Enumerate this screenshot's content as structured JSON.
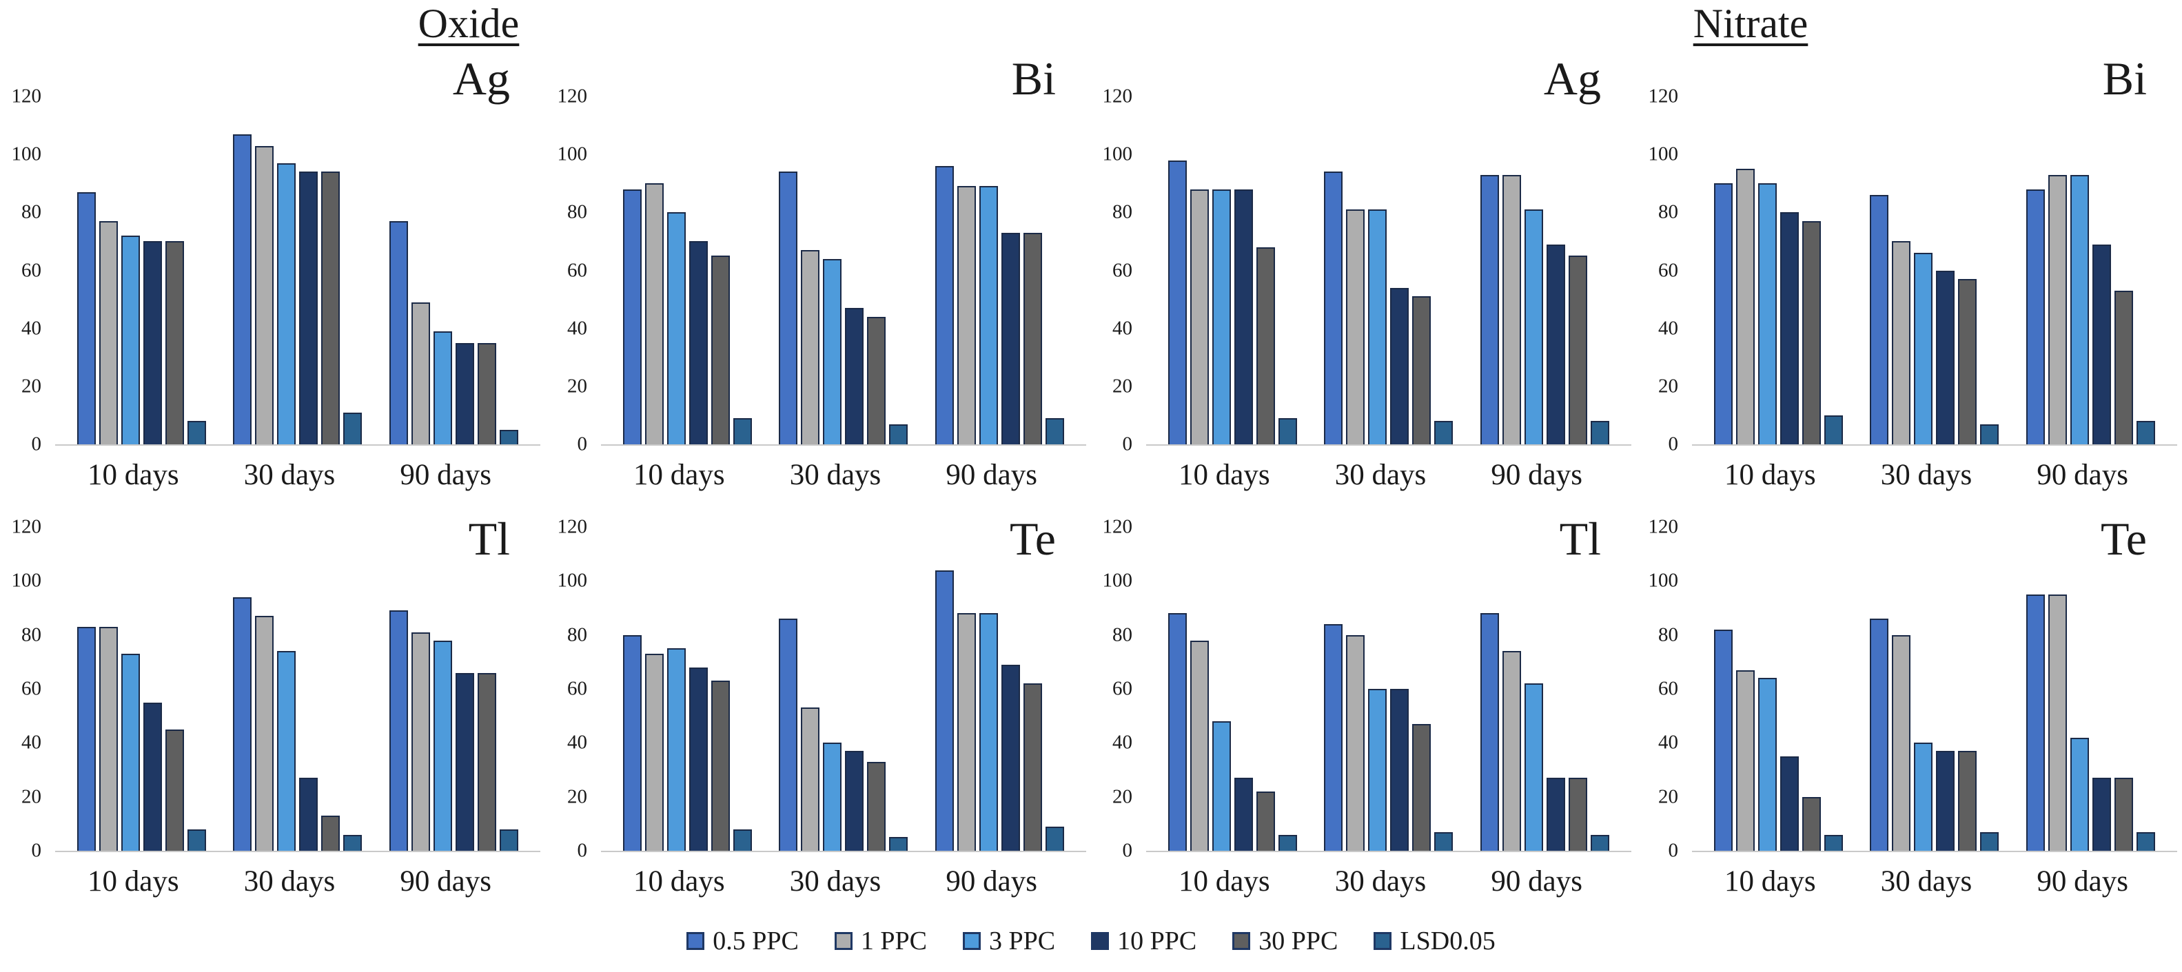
{
  "figure": {
    "sections": [
      {
        "title": "Oxide"
      },
      {
        "title": "Nitrate"
      }
    ]
  },
  "legend": {
    "items": [
      {
        "label": "0.5 PPC",
        "color": "#4472C4"
      },
      {
        "label": "1 PPC",
        "color": "#AEAEAE"
      },
      {
        "label": "3 PPC",
        "color": "#4E9BDB"
      },
      {
        "label": "10 PPC",
        "color": "#1F3864"
      },
      {
        "label": "30 PPC",
        "color": "#5F5F5F"
      },
      {
        "label": "LSD0.05",
        "color": "#2A628F"
      }
    ]
  },
  "chart_data": [
    {
      "type": "bar",
      "section": "Oxide",
      "element": "Ag",
      "categories": [
        "10 days",
        "30 days",
        "90 days"
      ],
      "ylim": [
        0,
        120
      ],
      "yticks": [
        0,
        20,
        40,
        60,
        80,
        100,
        120
      ],
      "series": [
        {
          "name": "0.5 PPC",
          "values": [
            87,
            107,
            77
          ]
        },
        {
          "name": "1 PPC",
          "values": [
            77,
            103,
            49
          ]
        },
        {
          "name": "3 PPC",
          "values": [
            72,
            97,
            39
          ]
        },
        {
          "name": "10 PPC",
          "values": [
            70,
            94,
            35
          ]
        },
        {
          "name": "30 PPC",
          "values": [
            70,
            94,
            35
          ]
        },
        {
          "name": "LSD0.05",
          "values": [
            8,
            11,
            5
          ]
        }
      ]
    },
    {
      "type": "bar",
      "section": "Oxide",
      "element": "Bi",
      "categories": [
        "10 days",
        "30 days",
        "90 days"
      ],
      "ylim": [
        0,
        120
      ],
      "yticks": [
        0,
        20,
        40,
        60,
        80,
        100,
        120
      ],
      "series": [
        {
          "name": "0.5 PPC",
          "values": [
            88,
            94,
            96
          ]
        },
        {
          "name": "1 PPC",
          "values": [
            90,
            67,
            89
          ]
        },
        {
          "name": "3 PPC",
          "values": [
            80,
            64,
            89
          ]
        },
        {
          "name": "10 PPC",
          "values": [
            70,
            47,
            73
          ]
        },
        {
          "name": "30 PPC",
          "values": [
            65,
            44,
            73
          ]
        },
        {
          "name": "LSD0.05",
          "values": [
            9,
            7,
            9
          ]
        }
      ]
    },
    {
      "type": "bar",
      "section": "Nitrate",
      "element": "Ag",
      "categories": [
        "10 days",
        "30 days",
        "90 days"
      ],
      "ylim": [
        0,
        120
      ],
      "yticks": [
        0,
        20,
        40,
        60,
        80,
        100,
        120
      ],
      "series": [
        {
          "name": "0.5 PPC",
          "values": [
            98,
            94,
            93
          ]
        },
        {
          "name": "1 PPC",
          "values": [
            88,
            81,
            93
          ]
        },
        {
          "name": "3 PPC",
          "values": [
            88,
            81,
            81
          ]
        },
        {
          "name": "10 PPC",
          "values": [
            88,
            54,
            69
          ]
        },
        {
          "name": "30 PPC",
          "values": [
            68,
            51,
            65
          ]
        },
        {
          "name": "LSD0.05",
          "values": [
            9,
            8,
            8
          ]
        }
      ]
    },
    {
      "type": "bar",
      "section": "Nitrate",
      "element": "Bi",
      "categories": [
        "10 days",
        "30 days",
        "90 days"
      ],
      "ylim": [
        0,
        120
      ],
      "yticks": [
        0,
        20,
        40,
        60,
        80,
        100,
        120
      ],
      "series": [
        {
          "name": "0.5 PPC",
          "values": [
            90,
            86,
            88
          ]
        },
        {
          "name": "1 PPC",
          "values": [
            95,
            70,
            93
          ]
        },
        {
          "name": "3 PPC",
          "values": [
            90,
            66,
            93
          ]
        },
        {
          "name": "10 PPC",
          "values": [
            80,
            60,
            69
          ]
        },
        {
          "name": "30 PPC",
          "values": [
            77,
            57,
            53
          ]
        },
        {
          "name": "LSD0.05",
          "values": [
            10,
            7,
            8
          ]
        }
      ]
    },
    {
      "type": "bar",
      "section": "Oxide",
      "element": "Tl",
      "categories": [
        "10 days",
        "30 days",
        "90 days"
      ],
      "ylim": [
        0,
        120
      ],
      "yticks": [
        0,
        20,
        40,
        60,
        80,
        100,
        120
      ],
      "series": [
        {
          "name": "0.5 PPC",
          "values": [
            83,
            94,
            89
          ]
        },
        {
          "name": "1 PPC",
          "values": [
            83,
            87,
            81
          ]
        },
        {
          "name": "3 PPC",
          "values": [
            73,
            74,
            78
          ]
        },
        {
          "name": "10 PPC",
          "values": [
            55,
            27,
            66
          ]
        },
        {
          "name": "30 PPC",
          "values": [
            45,
            13,
            66
          ]
        },
        {
          "name": "LSD0.05",
          "values": [
            8,
            6,
            8
          ]
        }
      ]
    },
    {
      "type": "bar",
      "section": "Oxide",
      "element": "Te",
      "categories": [
        "10 days",
        "30 days",
        "90 days"
      ],
      "ylim": [
        0,
        120
      ],
      "yticks": [
        0,
        20,
        40,
        60,
        80,
        100,
        120
      ],
      "series": [
        {
          "name": "0.5 PPC",
          "values": [
            80,
            86,
            104
          ]
        },
        {
          "name": "1 PPC",
          "values": [
            73,
            53,
            88
          ]
        },
        {
          "name": "3 PPC",
          "values": [
            75,
            40,
            88
          ]
        },
        {
          "name": "10 PPC",
          "values": [
            68,
            37,
            69
          ]
        },
        {
          "name": "30 PPC",
          "values": [
            63,
            33,
            62
          ]
        },
        {
          "name": "LSD0.05",
          "values": [
            8,
            5,
            9
          ]
        }
      ]
    },
    {
      "type": "bar",
      "section": "Nitrate",
      "element": "Tl",
      "categories": [
        "10 days",
        "30 days",
        "90 days"
      ],
      "ylim": [
        0,
        120
      ],
      "yticks": [
        0,
        20,
        40,
        60,
        80,
        100,
        120
      ],
      "series": [
        {
          "name": "0.5 PPC",
          "values": [
            88,
            84,
            88
          ]
        },
        {
          "name": "1 PPC",
          "values": [
            78,
            80,
            74
          ]
        },
        {
          "name": "3 PPC",
          "values": [
            48,
            60,
            62
          ]
        },
        {
          "name": "10 PPC",
          "values": [
            27,
            60,
            27
          ]
        },
        {
          "name": "30 PPC",
          "values": [
            22,
            47,
            27
          ]
        },
        {
          "name": "LSD0.05",
          "values": [
            6,
            7,
            6
          ]
        }
      ]
    },
    {
      "type": "bar",
      "section": "Nitrate",
      "element": "Te",
      "categories": [
        "10 days",
        "30 days",
        "90 days"
      ],
      "ylim": [
        0,
        120
      ],
      "yticks": [
        0,
        20,
        40,
        60,
        80,
        100,
        120
      ],
      "series": [
        {
          "name": "0.5 PPC",
          "values": [
            82,
            86,
            95
          ]
        },
        {
          "name": "1 PPC",
          "values": [
            67,
            80,
            95
          ]
        },
        {
          "name": "3 PPC",
          "values": [
            64,
            40,
            42
          ]
        },
        {
          "name": "10 PPC",
          "values": [
            35,
            37,
            27
          ]
        },
        {
          "name": "30 PPC",
          "values": [
            20,
            37,
            27
          ]
        },
        {
          "name": "LSD0.05",
          "values": [
            6,
            7,
            7
          ]
        }
      ]
    }
  ]
}
